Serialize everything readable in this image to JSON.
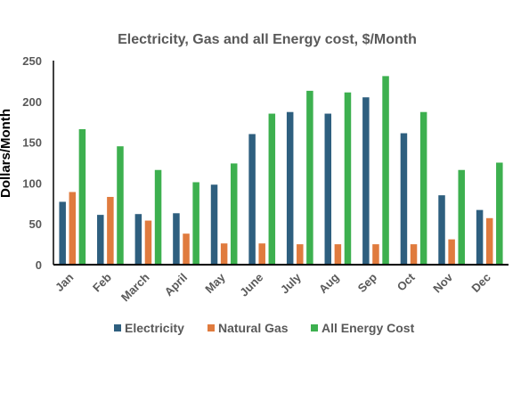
{
  "chart_data": {
    "type": "bar",
    "title": "Electricity, Gas and all  Energy cost, $/Month",
    "xlabel": "",
    "ylabel": "Dollars/Month",
    "ylim": [
      0,
      250
    ],
    "yticks": [
      0,
      50,
      100,
      150,
      200,
      250
    ],
    "grid": false,
    "legend_position": "bottom",
    "categories": [
      "Jan",
      "Feb",
      "March",
      "April",
      "May",
      "June",
      "July",
      "Aug",
      "Sep",
      "Oct",
      "Nov",
      "Dec"
    ],
    "series": [
      {
        "name": "Electricity",
        "color": "#2E5F7F",
        "values": [
          77,
          61,
          62,
          63,
          98,
          160,
          187,
          185,
          205,
          161,
          85,
          67
        ]
      },
      {
        "name": "Natural Gas",
        "color": "#E07B3E",
        "values": [
          89,
          83,
          54,
          38,
          26,
          26,
          25,
          25,
          25,
          25,
          31,
          57
        ]
      },
      {
        "name": "All Energy Cost",
        "color": "#3DB04F",
        "values": [
          166,
          145,
          116,
          101,
          124,
          185,
          213,
          211,
          231,
          187,
          116,
          125
        ]
      }
    ]
  }
}
